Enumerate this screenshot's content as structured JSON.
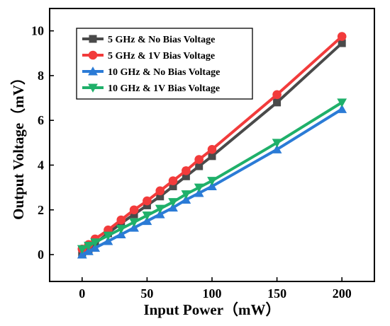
{
  "chart_data": {
    "type": "line",
    "title": "",
    "xlabel": "Input Power（mW）",
    "ylabel": "Output  Voltage（mV）",
    "xlim": [
      -25,
      225
    ],
    "ylim": [
      -1.2,
      11
    ],
    "xticks": [
      0,
      50,
      100,
      150,
      200
    ],
    "yticks": [
      0,
      2,
      4,
      6,
      8,
      10
    ],
    "grid": false,
    "legend_position": "top-left",
    "x": [
      0,
      5,
      10,
      20,
      30,
      40,
      50,
      60,
      70,
      80,
      90,
      100,
      150,
      200
    ],
    "series": [
      {
        "name": "5 GHz & No Bias Voltage",
        "color": "#4a4a4a",
        "marker": "square",
        "values": [
          0.0,
          0.25,
          0.5,
          0.95,
          1.4,
          1.8,
          2.2,
          2.6,
          3.05,
          3.5,
          3.95,
          4.4,
          6.8,
          9.45
        ]
      },
      {
        "name": "5 GHz & 1V Bias Voltage",
        "color": "#f23b3b",
        "marker": "circle",
        "values": [
          0.25,
          0.45,
          0.7,
          1.1,
          1.55,
          2.0,
          2.4,
          2.85,
          3.3,
          3.75,
          4.25,
          4.7,
          7.15,
          9.75
        ]
      },
      {
        "name": "10 GHz & No Bias Voltage",
        "color": "#2b7bd6",
        "marker": "triangle-up",
        "values": [
          0.0,
          0.15,
          0.3,
          0.6,
          0.9,
          1.2,
          1.5,
          1.8,
          2.1,
          2.45,
          2.75,
          3.05,
          4.7,
          6.5
        ]
      },
      {
        "name": "10 GHz & 1V Bias Voltage",
        "color": "#1fb06a",
        "marker": "triangle-down",
        "values": [
          0.25,
          0.4,
          0.55,
          0.85,
          1.15,
          1.45,
          1.75,
          2.05,
          2.35,
          2.7,
          3.0,
          3.3,
          5.0,
          6.8
        ]
      }
    ]
  }
}
